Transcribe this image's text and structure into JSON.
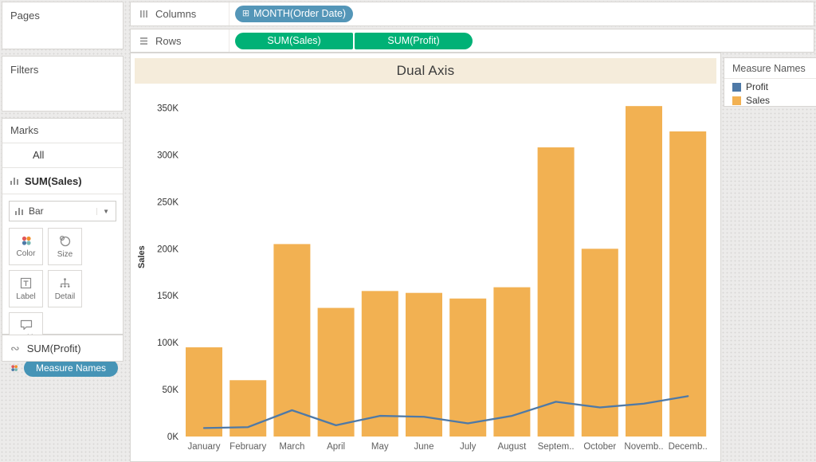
{
  "sidebar": {
    "pages_label": "Pages",
    "filters_label": "Filters",
    "marks": {
      "title": "Marks",
      "all_label": "All",
      "sum_sales_label": "SUM(Sales)",
      "mark_type": "Bar",
      "buttons": [
        {
          "label": "Color",
          "icon": "color-dots-icon"
        },
        {
          "label": "Size",
          "icon": "size-circles-icon"
        },
        {
          "label": "Label",
          "icon": "label-t-icon"
        },
        {
          "label": "Detail",
          "icon": "detail-tree-icon"
        },
        {
          "label": "Tooltip",
          "icon": "tooltip-bubble-icon"
        }
      ],
      "measure_names_pill": "Measure Names"
    },
    "sum_profit_label": "SUM(Profit)"
  },
  "shelves": {
    "columns_label": "Columns",
    "rows_label": "Rows",
    "columns_pills": [
      {
        "label": "MONTH(Order Date)",
        "kind": "dimension-date"
      }
    ],
    "rows_pills": [
      {
        "label": "SUM(Sales)",
        "kind": "measure"
      },
      {
        "label": "SUM(Profit)",
        "kind": "measure"
      }
    ]
  },
  "legend": {
    "title": "Measure Names",
    "items": [
      {
        "label": "Profit",
        "color": "#4e79a7"
      },
      {
        "label": "Sales",
        "color": "#f2b152"
      }
    ]
  },
  "chart_data": {
    "type": "bar",
    "subtype": "dual-axis bar + line combo",
    "title": "Dual Axis",
    "ylabel": "Sales",
    "categories": [
      "January",
      "February",
      "March",
      "April",
      "May",
      "June",
      "July",
      "August",
      "September",
      "October",
      "November",
      "December"
    ],
    "x_tick_labels": [
      "January",
      "February",
      "March",
      "April",
      "May",
      "June",
      "July",
      "August",
      "Septem..",
      "October",
      "Novemb..",
      "Decemb.."
    ],
    "y_ticks": [
      {
        "value_k": 0,
        "label": "0K"
      },
      {
        "value_k": 50,
        "label": "50K"
      },
      {
        "value_k": 100,
        "label": "100K"
      },
      {
        "value_k": 150,
        "label": "150K"
      },
      {
        "value_k": 200,
        "label": "200K"
      },
      {
        "value_k": 250,
        "label": "250K"
      },
      {
        "value_k": 300,
        "label": "300K"
      },
      {
        "value_k": 350,
        "label": "350K"
      }
    ],
    "ylim_k": [
      0,
      370
    ],
    "grid": false,
    "legend_position": "right",
    "series": [
      {
        "name": "Sales",
        "type": "bar",
        "axis": "left",
        "color": "#f2b152",
        "values_k": [
          95,
          60,
          205,
          137,
          155,
          153,
          147,
          159,
          308,
          200,
          352,
          325
        ]
      },
      {
        "name": "Profit",
        "type": "line",
        "axis": "secondary-hidden",
        "color": "#4e79a7",
        "values_k": [
          9,
          10,
          28,
          12,
          22,
          21,
          14,
          22,
          37,
          31,
          35,
          43
        ]
      }
    ]
  },
  "colors": {
    "pill_dimension_blue": "#5496b8",
    "pill_measure_green": "#00b176",
    "measure_names_pill_teal": "#4694b6",
    "title_band_cream": "#f5ecdb",
    "bar_orange": "#f2b152",
    "line_blue": "#4e79a7"
  }
}
